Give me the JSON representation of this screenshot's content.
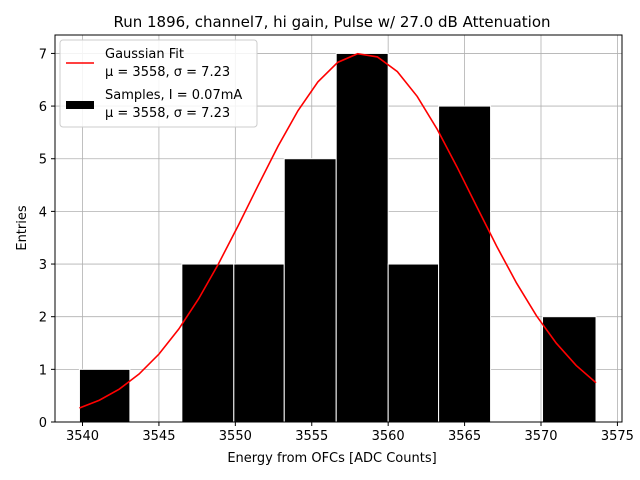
{
  "chart_data": {
    "type": "bar",
    "title": "Run 1896, channel7, hi gain, Pulse w/ 27.0 dB Attenuation",
    "xlabel": "Energy from OFCs [ADC Counts]",
    "ylabel": "Entries",
    "xlim": [
      3538.2,
      3575.3
    ],
    "ylim": [
      0,
      7.35
    ],
    "xticks": [
      3540,
      3545,
      3550,
      3555,
      3560,
      3565,
      3570,
      3575
    ],
    "yticks": [
      0,
      1,
      2,
      3,
      4,
      5,
      6,
      7
    ],
    "grid": true,
    "legend_position": "top-left",
    "histogram": {
      "name": "Samples, I = 0.07mA",
      "stats": "μ = 3558, σ = 7.23",
      "color": "#000000",
      "edge_color": "#ffffff",
      "bins": [
        {
          "x0": 3539.8,
          "x1": 3543.1,
          "count": 1
        },
        {
          "x0": 3543.1,
          "x1": 3546.5,
          "count": 0
        },
        {
          "x0": 3546.5,
          "x1": 3549.9,
          "count": 3
        },
        {
          "x0": 3549.9,
          "x1": 3553.2,
          "count": 3
        },
        {
          "x0": 3553.2,
          "x1": 3556.6,
          "count": 5
        },
        {
          "x0": 3556.6,
          "x1": 3560.0,
          "count": 7
        },
        {
          "x0": 3560.0,
          "x1": 3563.3,
          "count": 3
        },
        {
          "x0": 3563.3,
          "x1": 3566.7,
          "count": 6
        },
        {
          "x0": 3566.7,
          "x1": 3570.1,
          "count": 0
        },
        {
          "x0": 3570.1,
          "x1": 3573.6,
          "count": 2
        }
      ]
    },
    "fit": {
      "name": "Gaussian Fit",
      "stats": "μ = 3558, σ = 7.23",
      "color": "#ff0000",
      "mean": 3558.3,
      "sigma": 7.23,
      "amplitude": 7.0,
      "x_range": [
        3539.8,
        3573.6
      ]
    }
  }
}
